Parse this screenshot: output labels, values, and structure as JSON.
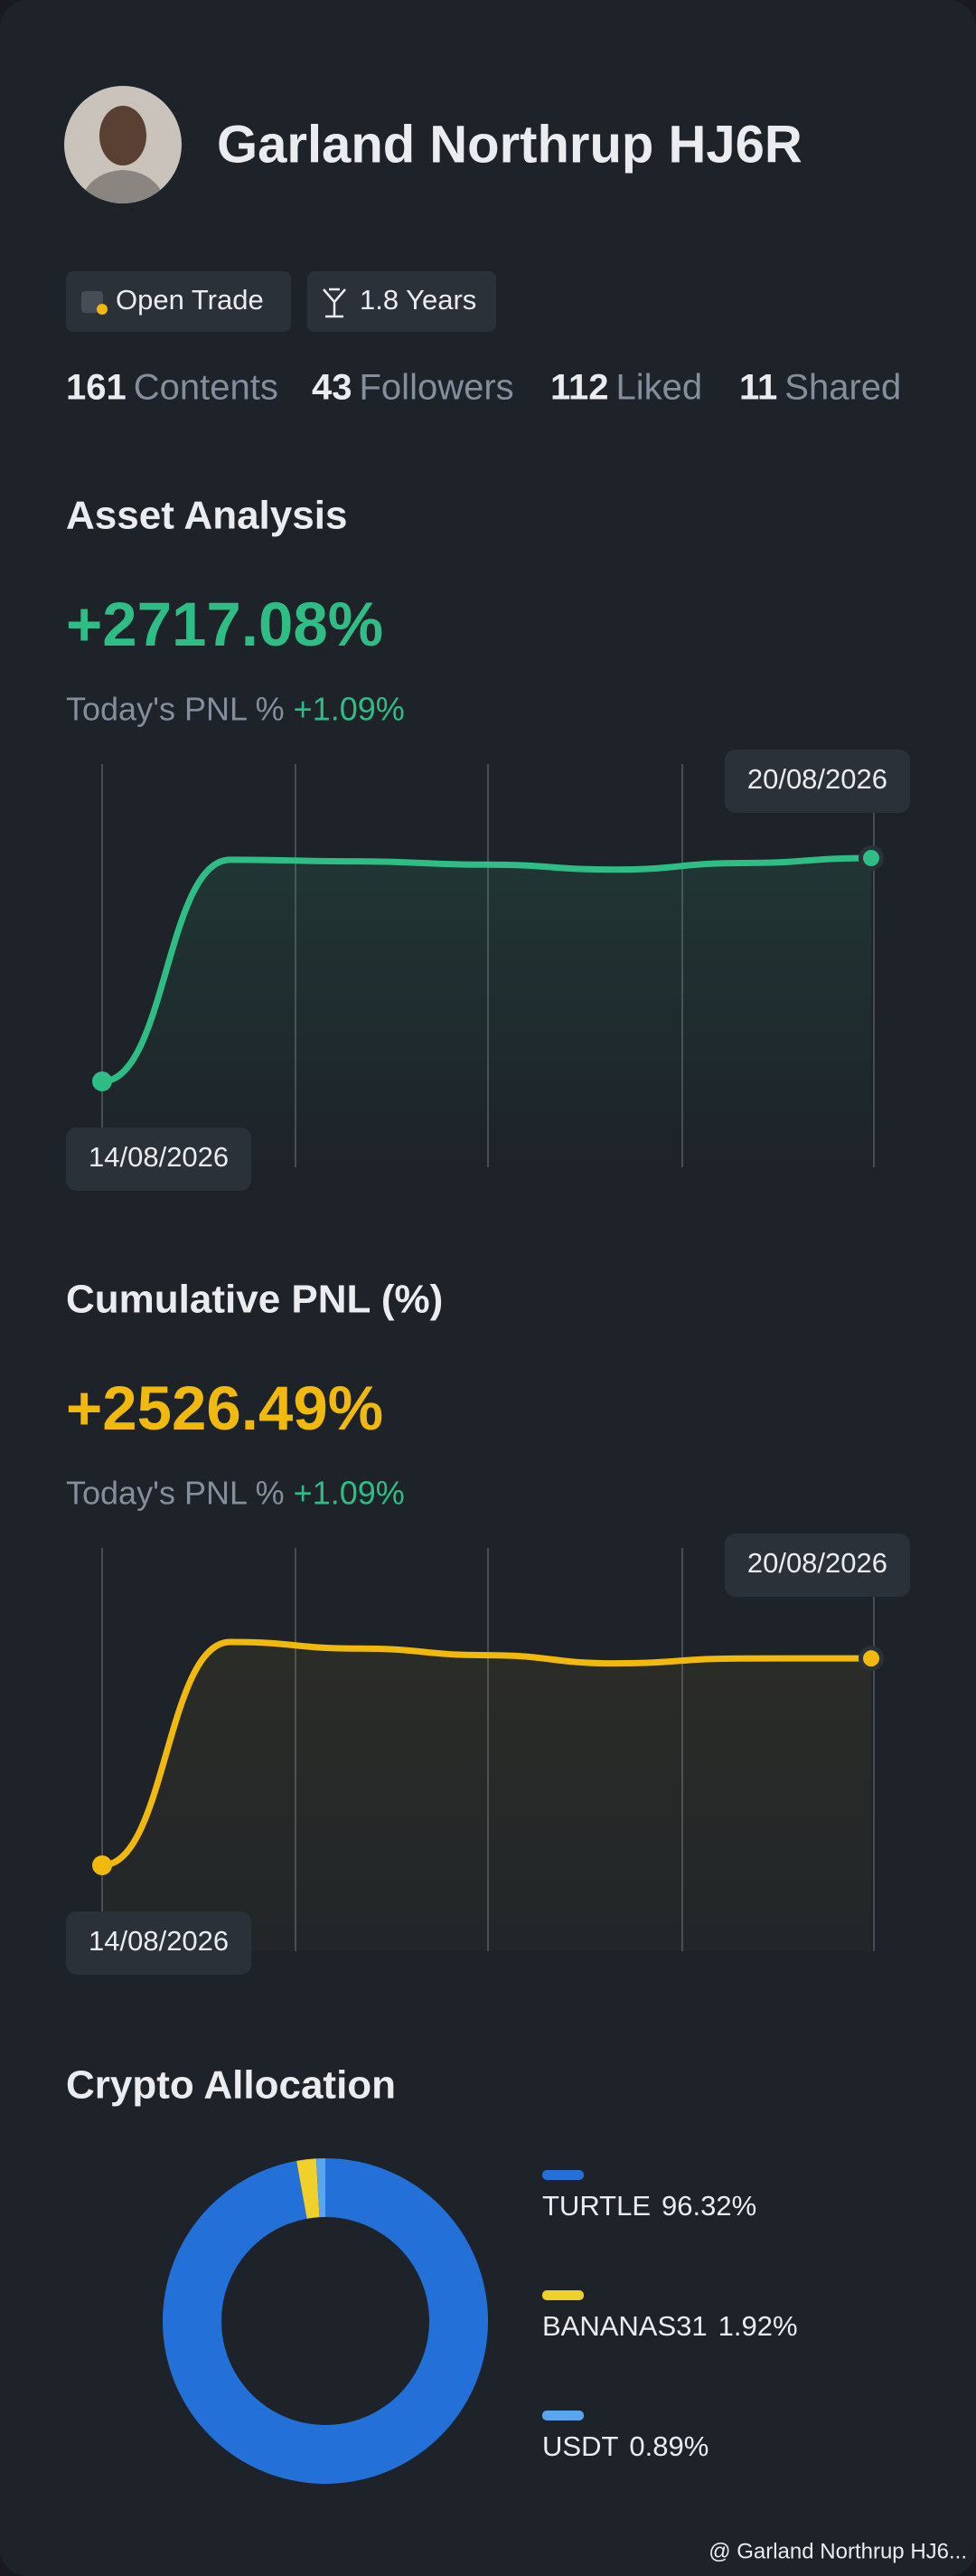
{
  "profile": {
    "name": "Garland Northrup HJ6R",
    "badges": [
      "Open Trade",
      "1.8 Years"
    ],
    "stats": [
      {
        "value": 161,
        "label": "Contents"
      },
      {
        "value": 43,
        "label": "Followers"
      },
      {
        "value": 112,
        "label": "Liked"
      },
      {
        "value": 11,
        "label": "Shared"
      }
    ]
  },
  "chart_data": [
    {
      "type": "line",
      "title": "Asset Analysis",
      "headline": "+2717.08%",
      "subtitle_label": "Today's PNL %",
      "subtitle_value": "+1.09%",
      "categories": [
        "14/08/2026",
        null,
        null,
        null,
        null,
        null,
        "20/08/2026"
      ],
      "values": [
        0,
        2697,
        2677,
        2637,
        2577,
        2657,
        2717.08
      ],
      "color": "#2ebd85"
    },
    {
      "type": "line",
      "title": "Cumulative PNL (%)",
      "headline": "+2526.49%",
      "subtitle_label": "Today's PNL %",
      "subtitle_value": "+1.09%",
      "categories": [
        "14/08/2026",
        null,
        null,
        null,
        null,
        null,
        "20/08/2026"
      ],
      "values": [
        0,
        2727,
        2647,
        2566,
        2466,
        2526,
        2526.49
      ],
      "color": "#f0b90b"
    },
    {
      "type": "donut",
      "title": "Crypto Allocation",
      "categories": [
        "TURTLE",
        "BANANAS31",
        "USDT"
      ],
      "values": [
        96.32,
        1.92,
        0.89
      ],
      "value_labels": [
        "96.32%",
        "1.92%",
        "0.89%"
      ],
      "colors": [
        "#2270d8",
        "#f0d02a",
        "#5aa5f0"
      ]
    }
  ],
  "footer": "@ Garland Northrup HJ6..."
}
